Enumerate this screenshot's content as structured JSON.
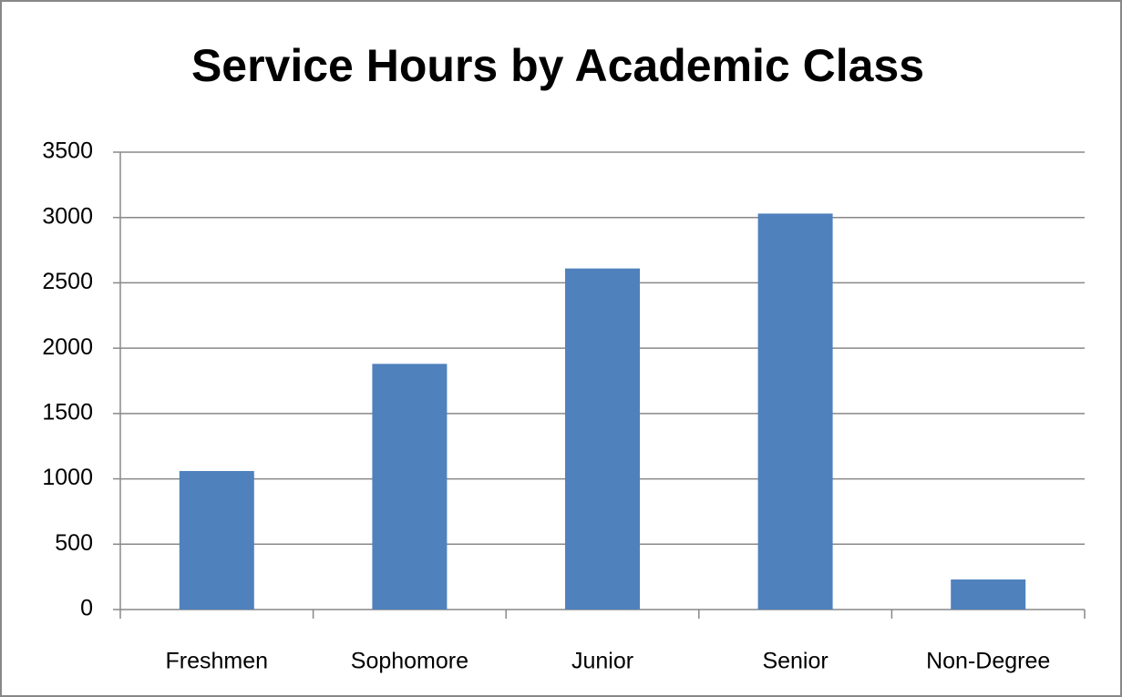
{
  "chart_data": {
    "type": "bar",
    "title": "Service Hours by Academic Class",
    "categories": [
      "Freshmen",
      "Sophomore",
      "Junior",
      "Senior",
      "Non-Degree"
    ],
    "values": [
      1060,
      1880,
      2610,
      3030,
      230
    ],
    "color": "#4f81bd",
    "ylim": [
      0,
      3500
    ],
    "yticks": [
      0,
      500,
      1000,
      1500,
      2000,
      2500,
      3000,
      3500
    ],
    "grid": true
  }
}
